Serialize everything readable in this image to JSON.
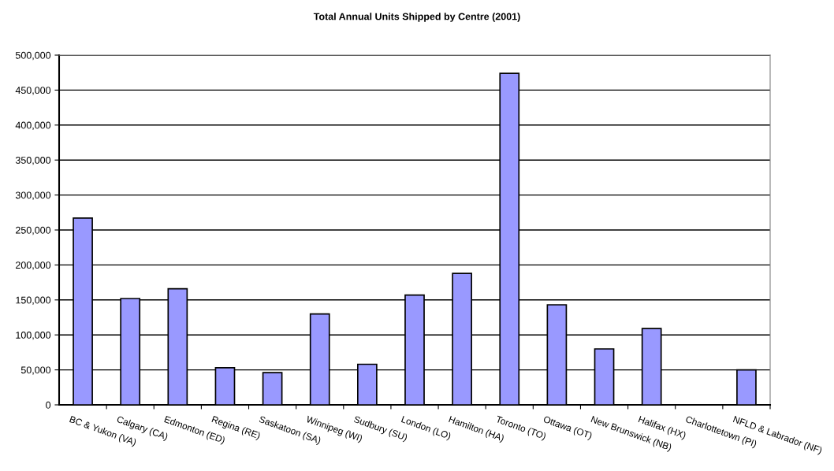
{
  "chart_data": {
    "type": "bar",
    "title": "Total Annual Units Shipped by Centre (2001)",
    "categories": [
      "BC & Yukon (VA)",
      "Calgary (CA)",
      "Edmonton (ED)",
      "Regina (RE)",
      "Saskatoon (SA)",
      "Winnipeg (WI)",
      "Sudbury (SU)",
      "London (LO)",
      "Hamilton (HA)",
      "Toronto (TO)",
      "Ottawa (OT)",
      "New Brunswick (NB)",
      "Halifax (HX)",
      "Charlottetown (PI)",
      "NFLD & Labrador (NF)"
    ],
    "values": [
      267000,
      152000,
      166000,
      53000,
      46000,
      130000,
      58000,
      157000,
      188000,
      474000,
      143000,
      80000,
      109000,
      null,
      50000
    ],
    "color": "#9999ff",
    "ylim": [
      0,
      500000
    ],
    "yticks": [
      0,
      {
        "value": 50000,
        "label": "50,000"
      },
      {
        "value": 100000,
        "label": "100,000"
      },
      {
        "value": 150000,
        "label": "150,000"
      },
      {
        "value": 200000,
        "label": "200,000"
      },
      {
        "value": 250000,
        "label": "250,000"
      },
      {
        "value": 300000,
        "label": "300,000"
      },
      {
        "value": 350000,
        "label": "350,000"
      },
      {
        "value": 400000,
        "label": "400,000"
      },
      {
        "value": 450000,
        "label": "450,000"
      },
      {
        "value": 500000,
        "label": "500,000"
      }
    ],
    "grid": "y",
    "legend": false
  }
}
